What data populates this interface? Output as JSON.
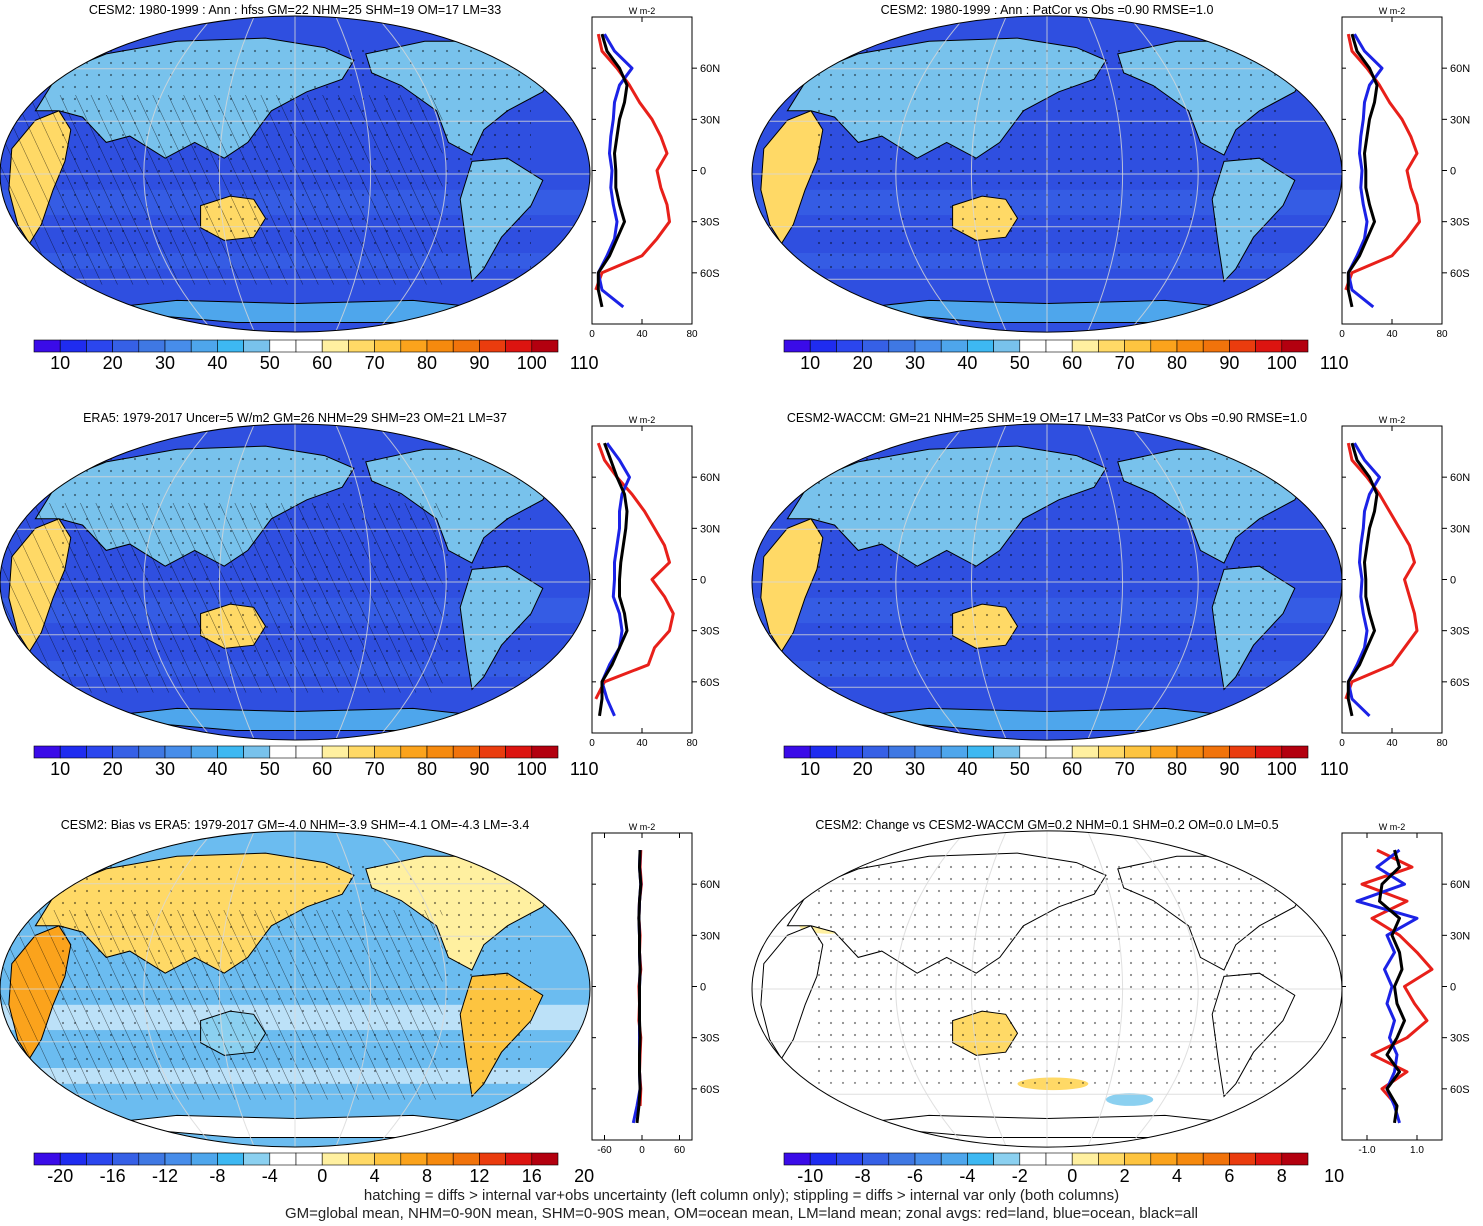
{
  "colors": {
    "full": [
      "#3a0be8",
      "#1f2cf0",
      "#2b46ee",
      "#3660e6",
      "#3f78e3",
      "#478dea",
      "#4ea6ec",
      "#3db8f2",
      "#78c2ec",
      "#ffffff",
      "#ffffff",
      "#fff0a0",
      "#ffd966",
      "#fdc440",
      "#fba31c",
      "#f68a0e",
      "#f1730b",
      "#ea3c0e",
      "#dc1410",
      "#b3000f"
    ],
    "diff": [
      "#3a0be8",
      "#1f2cf0",
      "#2b46ee",
      "#3660e6",
      "#3f78e3",
      "#478dea",
      "#4ea6ec",
      "#3db8f2",
      "#8bd0f0",
      "#ffffff",
      "#ffffff",
      "#fff0a0",
      "#ffd966",
      "#fdc440",
      "#fba31c",
      "#f68a0e",
      "#f1730b",
      "#ea3c0e",
      "#dc1410",
      "#b3000f"
    ],
    "ocean_full": "#2f4fe0",
    "ocean_bias": "#6bbcf0",
    "land_line": "#e8201a",
    "ocean_line": "#1b22e6",
    "all_line": "#000000"
  },
  "panels": [
    {
      "id": "cesm2-mean",
      "title": "CESM2: 1980-1999 : Ann : hfss GM=22 NHM=25 SHM=19 OM=17 LM=33",
      "cb_ticks": [
        "10",
        "20",
        "30",
        "40",
        "50",
        "60",
        "70",
        "80",
        "90",
        "100",
        "110"
      ],
      "profile": {
        "xticks": [
          "0",
          "40",
          "80"
        ],
        "xrange": [
          0,
          80
        ],
        "lat_labels": [
          "60N",
          "30N",
          "0",
          "30S",
          "60S"
        ],
        "unit": "W m-2"
      },
      "hatch": true,
      "palette": "full"
    },
    {
      "id": "cesm2-patcor",
      "title": "CESM2: 1980-1999 : Ann : PatCor vs Obs =0.90 RMSE=1.0",
      "cb_ticks": [
        "10",
        "20",
        "30",
        "40",
        "50",
        "60",
        "70",
        "80",
        "90",
        "100",
        "110"
      ],
      "profile": {
        "xticks": [
          "0",
          "40",
          "80"
        ],
        "xrange": [
          0,
          80
        ],
        "lat_labels": [
          "60N",
          "30N",
          "0",
          "30S",
          "60S"
        ],
        "unit": "W m-2"
      },
      "hatch": false,
      "palette": "full"
    },
    {
      "id": "era5",
      "title": "ERA5: 1979-2017 Uncer=5 W/m2 GM=26 NHM=29 SHM=23 OM=21 LM=37",
      "cb_ticks": [
        "10",
        "20",
        "30",
        "40",
        "50",
        "60",
        "70",
        "80",
        "90",
        "100",
        "110"
      ],
      "profile": {
        "xticks": [
          "0",
          "40",
          "80"
        ],
        "xrange": [
          0,
          80
        ],
        "lat_labels": [
          "60N",
          "30N",
          "0",
          "30S",
          "60S"
        ],
        "unit": "W m-2"
      },
      "hatch": true,
      "palette": "full"
    },
    {
      "id": "waccm",
      "title": "CESM2-WACCM: GM=21 NHM=25 SHM=19 OM=17 LM=33 PatCor vs Obs =0.90 RMSE=1.0",
      "cb_ticks": [
        "10",
        "20",
        "30",
        "40",
        "50",
        "60",
        "70",
        "80",
        "90",
        "100",
        "110"
      ],
      "profile": {
        "xticks": [
          "0",
          "40",
          "80"
        ],
        "xrange": [
          0,
          80
        ],
        "lat_labels": [
          "60N",
          "30N",
          "0",
          "30S",
          "60S"
        ],
        "unit": "W m-2"
      },
      "hatch": false,
      "palette": "full"
    },
    {
      "id": "bias",
      "title": "CESM2: Bias vs ERA5: 1979-2017 GM=-4.0 NHM=-3.9 SHM=-4.1 OM=-4.3 LM=-3.4",
      "cb_ticks": [
        "-20",
        "-16",
        "-12",
        "-8",
        "-4",
        "0",
        "4",
        "8",
        "12",
        "16",
        "20"
      ],
      "profile": {
        "xticks": [
          "-60",
          "0",
          "60"
        ],
        "xrange": [
          -80,
          80
        ],
        "lat_labels": [
          "60N",
          "30N",
          "0",
          "30S",
          "60S"
        ],
        "unit": "W m-2"
      },
      "hatch": true,
      "palette": "diff"
    },
    {
      "id": "change",
      "title": "CESM2: Change vs CESM2-WACCM GM=0.2 NHM=0.1 SHM=0.2 OM=0.0 LM=0.5",
      "cb_ticks": [
        "-10",
        "-8",
        "-6",
        "-4",
        "-2",
        "0",
        "2",
        "4",
        "6",
        "8",
        "10"
      ],
      "profile": {
        "xticks": [
          "-1.0",
          "1.0"
        ],
        "xrange": [
          -2,
          2
        ],
        "lat_labels": [
          "60N",
          "30N",
          "0",
          "30S",
          "60S"
        ],
        "unit": "W m-2"
      },
      "hatch": false,
      "palette": "diff"
    }
  ],
  "chart_data": [
    {
      "type": "line",
      "title": "CESM2: 1980-1999 : Ann : hfss GM=22 NHM=25 SHM=19 OM=17 LM=33",
      "xlabel": "W m-2",
      "xlim": [
        0,
        80
      ],
      "ylim": [
        -90,
        90
      ],
      "y": [
        80,
        70,
        60,
        50,
        40,
        30,
        20,
        10,
        0,
        -10,
        -20,
        -30,
        -40,
        -50,
        -60,
        -70,
        -80
      ],
      "series": [
        {
          "name": "red=land",
          "values": [
            5,
            8,
            20,
            30,
            38,
            48,
            55,
            60,
            52,
            55,
            60,
            62,
            52,
            40,
            8,
            3,
            null
          ]
        },
        {
          "name": "blue=ocean",
          "values": [
            10,
            18,
            32,
            22,
            18,
            17,
            15,
            14,
            16,
            15,
            17,
            20,
            18,
            12,
            5,
            8,
            25
          ]
        },
        {
          "name": "black=all",
          "values": [
            8,
            12,
            22,
            28,
            26,
            22,
            20,
            18,
            19,
            19,
            22,
            26,
            20,
            14,
            5,
            5,
            8
          ]
        }
      ]
    },
    {
      "type": "line",
      "title": "CESM2: 1980-1999 : Ann : PatCor vs Obs =0.90 RMSE=1.0",
      "xlabel": "W m-2",
      "xlim": [
        0,
        80
      ],
      "ylim": [
        -90,
        90
      ],
      "y": [
        80,
        70,
        60,
        50,
        40,
        30,
        20,
        10,
        0,
        -10,
        -20,
        -30,
        -40,
        -50,
        -60,
        -70,
        -80
      ],
      "series": [
        {
          "name": "red=land",
          "values": [
            5,
            8,
            20,
            30,
            38,
            48,
            55,
            60,
            52,
            55,
            60,
            62,
            52,
            40,
            8,
            3,
            null
          ]
        },
        {
          "name": "blue=ocean",
          "values": [
            10,
            18,
            32,
            22,
            18,
            17,
            15,
            14,
            16,
            15,
            17,
            20,
            18,
            12,
            5,
            8,
            25
          ]
        },
        {
          "name": "black=all",
          "values": [
            8,
            12,
            22,
            28,
            26,
            22,
            20,
            18,
            19,
            19,
            22,
            26,
            20,
            14,
            5,
            5,
            8
          ]
        }
      ]
    },
    {
      "type": "line",
      "title": "ERA5: 1979-2017 Uncer=5 W/m2 GM=26 NHM=29 SHM=23 OM=21 LM=37",
      "xlabel": "W m-2",
      "xlim": [
        0,
        80
      ],
      "ylim": [
        -90,
        90
      ],
      "y": [
        80,
        70,
        60,
        50,
        40,
        30,
        20,
        10,
        0,
        -10,
        -20,
        -30,
        -40,
        -50,
        -60,
        -70,
        -80
      ],
      "series": [
        {
          "name": "red=land",
          "values": [
            5,
            10,
            20,
            32,
            42,
            50,
            58,
            62,
            48,
            58,
            65,
            62,
            50,
            45,
            10,
            3,
            null
          ]
        },
        {
          "name": "blue=ocean",
          "values": [
            12,
            22,
            30,
            24,
            22,
            22,
            20,
            18,
            18,
            17,
            22,
            24,
            22,
            14,
            8,
            12,
            18
          ]
        },
        {
          "name": "black=all",
          "values": [
            10,
            15,
            20,
            26,
            28,
            27,
            25,
            23,
            22,
            22,
            26,
            28,
            22,
            16,
            8,
            8,
            6
          ]
        }
      ]
    },
    {
      "type": "line",
      "title": "CESM2-WACCM: GM=21 NHM=25 SHM=19 OM=17 LM=33 PatCor vs Obs =0.90 RMSE=1.0",
      "xlabel": "W m-2",
      "xlim": [
        0,
        80
      ],
      "ylim": [
        -90,
        90
      ],
      "y": [
        80,
        70,
        60,
        50,
        40,
        30,
        20,
        10,
        0,
        -10,
        -20,
        -30,
        -40,
        -50,
        -60,
        -70,
        -80
      ],
      "series": [
        {
          "name": "red=land",
          "values": [
            5,
            8,
            20,
            30,
            38,
            46,
            54,
            58,
            50,
            54,
            58,
            60,
            50,
            40,
            8,
            3,
            null
          ]
        },
        {
          "name": "blue=ocean",
          "values": [
            10,
            18,
            30,
            22,
            18,
            17,
            15,
            14,
            16,
            15,
            17,
            20,
            18,
            12,
            5,
            8,
            22
          ]
        },
        {
          "name": "black=all",
          "values": [
            8,
            12,
            22,
            28,
            26,
            22,
            20,
            18,
            19,
            19,
            22,
            26,
            20,
            14,
            5,
            5,
            8
          ]
        }
      ]
    },
    {
      "type": "line",
      "title": "CESM2: Bias vs ERA5: 1979-2017 GM=-4.0 NHM=-3.9 SHM=-4.1 OM=-4.3 LM=-3.4",
      "xlabel": "W m-2",
      "xlim": [
        -80,
        80
      ],
      "ylim": [
        -90,
        90
      ],
      "y": [
        80,
        70,
        60,
        50,
        40,
        30,
        20,
        10,
        0,
        -10,
        -20,
        -30,
        -40,
        -50,
        -60,
        -70,
        -80
      ],
      "series": [
        {
          "name": "red=land",
          "values": [
            -2,
            -3,
            -1,
            -4,
            -5,
            -3,
            -4,
            -2,
            -5,
            -4,
            -5,
            -2,
            -3,
            -4,
            -2,
            -3,
            null
          ]
        },
        {
          "name": "blue=ocean",
          "values": [
            -3,
            -4,
            -2,
            -4,
            -5,
            -4,
            -4,
            -3,
            -4,
            -4,
            -4,
            -4,
            -4,
            -4,
            -3,
            -8,
            -14
          ]
        },
        {
          "name": "black=all",
          "values": [
            -3,
            -4,
            -2,
            -4,
            -5,
            -4,
            -4,
            -3,
            -4,
            -4,
            -4,
            -3,
            -4,
            -4,
            -3,
            -5,
            -8
          ]
        }
      ]
    },
    {
      "type": "line",
      "title": "CESM2: Change vs CESM2-WACCM GM=0.2 NHM=0.1 SHM=0.2 OM=0.0 LM=0.5",
      "xlabel": "W m-2",
      "xlim": [
        -2,
        2
      ],
      "ylim": [
        -90,
        90
      ],
      "y": [
        80,
        70,
        60,
        50,
        40,
        30,
        20,
        10,
        0,
        -10,
        -20,
        -30,
        -40,
        -50,
        -60,
        -70,
        -80
      ],
      "series": [
        {
          "name": "red=land",
          "values": [
            -0.6,
            0.8,
            -1.2,
            0.6,
            -0.8,
            0.3,
            1.0,
            1.6,
            0.5,
            0.9,
            1.4,
            0.6,
            -0.8,
            0.6,
            -0.4,
            0.2,
            null
          ]
        },
        {
          "name": "blue=ocean",
          "values": [
            0.3,
            -0.6,
            0.5,
            -1.4,
            1.0,
            -0.2,
            0.1,
            -0.3,
            0.0,
            -0.2,
            0.1,
            -0.1,
            0.2,
            0.1,
            -0.2,
            0.1,
            0.3
          ]
        },
        {
          "name": "black=all",
          "values": [
            0.1,
            0.3,
            -0.4,
            -0.5,
            0.3,
            0.0,
            0.3,
            0.4,
            0.1,
            0.2,
            0.5,
            0.2,
            -0.2,
            0.3,
            -0.2,
            0.2,
            0.1
          ]
        }
      ]
    }
  ],
  "footer": {
    "line1": "hatching = diffs > internal var+obs uncertainty (left column only); stippling = diffs > internal var only (both columns)",
    "line2": "GM=global mean, NHM=0-90N mean, SHM=0-90S mean, OM=ocean mean, LM=land mean; zonal avgs: red=land, blue=ocean, black=all"
  }
}
